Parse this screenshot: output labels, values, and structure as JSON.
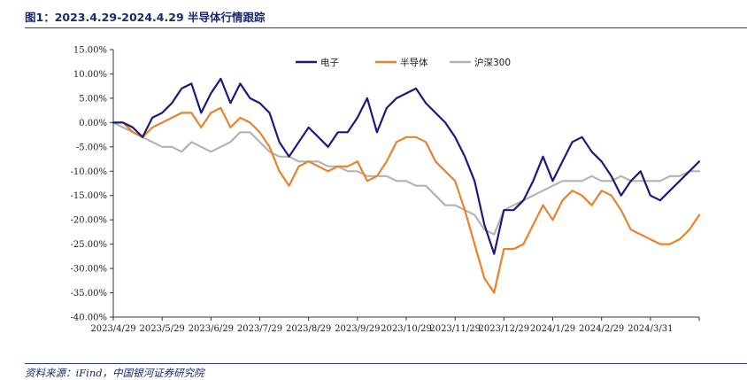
{
  "header": {
    "title": "图1：2023.4.29-2024.4.29 半导体行情跟踪"
  },
  "footer": {
    "source": "资料来源：iFind，中国银河证券研究院"
  },
  "colors": {
    "rule": "#2c3f86",
    "text": "#1a2a6c"
  },
  "chart_data": {
    "type": "line",
    "title": "图1：2023.4.29-2024.4.29 半导体行情跟踪",
    "xlabel": "",
    "ylabel": "",
    "ylim": [
      -40,
      15
    ],
    "y_ticks": [
      "15.00%",
      "10.00%",
      "5.00%",
      "0.00%",
      "-5.00%",
      "-10.00%",
      "-15.00%",
      "-20.00%",
      "-25.00%",
      "-30.00%",
      "-35.00%",
      "-40.00%"
    ],
    "y_tick_values": [
      15,
      10,
      5,
      0,
      -5,
      -10,
      -15,
      -20,
      -25,
      -30,
      -35,
      -40
    ],
    "x_ticks": [
      "2023/4/29",
      "2023/5/29",
      "2023/6/29",
      "2023/7/29",
      "2023/8/29",
      "2023/9/29",
      "2023/10/29",
      "2023/11/29",
      "2023/12/29",
      "2024/1/29",
      "2024/2/29",
      "2024/3/31"
    ],
    "x_range": [
      0,
      12
    ],
    "legend_position": "top",
    "series": [
      {
        "name": "电子",
        "color": "#1f1a7a",
        "x": [
          0,
          0.2,
          0.4,
          0.6,
          0.8,
          1.0,
          1.2,
          1.4,
          1.6,
          1.8,
          2.0,
          2.2,
          2.4,
          2.6,
          2.8,
          3.0,
          3.2,
          3.4,
          3.6,
          3.8,
          4.0,
          4.2,
          4.4,
          4.6,
          4.8,
          5.0,
          5.2,
          5.4,
          5.6,
          5.8,
          6.0,
          6.2,
          6.4,
          6.6,
          6.8,
          7.0,
          7.2,
          7.4,
          7.6,
          7.8,
          8.0,
          8.2,
          8.4,
          8.6,
          8.8,
          9.0,
          9.2,
          9.4,
          9.6,
          9.8,
          10.0,
          10.2,
          10.4,
          10.6,
          10.8,
          11.0,
          11.2,
          11.4,
          11.6,
          11.8,
          12.0
        ],
        "values": [
          0,
          0,
          -1,
          -3,
          1,
          2,
          4,
          7,
          8,
          2,
          6,
          9,
          4,
          8,
          5,
          4,
          2,
          -4,
          -7,
          -4,
          -1,
          -3,
          -5,
          -2,
          -2,
          1,
          5,
          -2,
          3,
          5,
          6,
          7,
          4,
          2,
          0,
          -3,
          -7,
          -12,
          -21,
          -27,
          -18,
          -18,
          -16,
          -12,
          -7,
          -12,
          -8,
          -4,
          -3,
          -6,
          -8,
          -11,
          -15,
          -12,
          -10,
          -15,
          -16,
          -14,
          -12,
          -10,
          -8
        ]
      },
      {
        "name": "半导体",
        "color": "#e8822c",
        "x": [
          0,
          0.2,
          0.4,
          0.6,
          0.8,
          1.0,
          1.2,
          1.4,
          1.6,
          1.8,
          2.0,
          2.2,
          2.4,
          2.6,
          2.8,
          3.0,
          3.2,
          3.4,
          3.6,
          3.8,
          4.0,
          4.2,
          4.4,
          4.6,
          4.8,
          5.0,
          5.2,
          5.4,
          5.6,
          5.8,
          6.0,
          6.2,
          6.4,
          6.6,
          6.8,
          7.0,
          7.2,
          7.4,
          7.6,
          7.8,
          8.0,
          8.2,
          8.4,
          8.6,
          8.8,
          9.0,
          9.2,
          9.4,
          9.6,
          9.8,
          10.0,
          10.2,
          10.4,
          10.6,
          10.8,
          11.0,
          11.2,
          11.4,
          11.6,
          11.8,
          12.0
        ],
        "values": [
          0,
          0,
          -2,
          -3,
          -1,
          0,
          1,
          2,
          2,
          -1,
          2,
          3,
          -1,
          1,
          0,
          -2,
          -5,
          -10,
          -13,
          -9,
          -8,
          -9,
          -10,
          -9,
          -9,
          -8,
          -12,
          -11,
          -8,
          -4,
          -3,
          -3,
          -4,
          -8,
          -10,
          -12,
          -18,
          -25,
          -32,
          -35,
          -26,
          -26,
          -25,
          -21,
          -17,
          -20,
          -16,
          -14,
          -15,
          -17,
          -14,
          -15,
          -18,
          -22,
          -23,
          -24,
          -25,
          -25,
          -24,
          -22,
          -19
        ]
      },
      {
        "name": "沪深300",
        "color": "#b3b3b3",
        "x": [
          0,
          0.2,
          0.4,
          0.6,
          0.8,
          1.0,
          1.2,
          1.4,
          1.6,
          1.8,
          2.0,
          2.2,
          2.4,
          2.6,
          2.8,
          3.0,
          3.2,
          3.4,
          3.6,
          3.8,
          4.0,
          4.2,
          4.4,
          4.6,
          4.8,
          5.0,
          5.2,
          5.4,
          5.6,
          5.8,
          6.0,
          6.2,
          6.4,
          6.6,
          6.8,
          7.0,
          7.2,
          7.4,
          7.6,
          7.8,
          8.0,
          8.2,
          8.4,
          8.6,
          8.8,
          9.0,
          9.2,
          9.4,
          9.6,
          9.8,
          10.0,
          10.2,
          10.4,
          10.6,
          10.8,
          11.0,
          11.2,
          11.4,
          11.6,
          11.8,
          12.0
        ],
        "values": [
          0,
          -1,
          -2,
          -3,
          -4,
          -5,
          -5,
          -6,
          -4,
          -5,
          -6,
          -5,
          -4,
          -2,
          -2,
          -4,
          -6,
          -7,
          -7,
          -8,
          -8,
          -8,
          -9,
          -9,
          -10,
          -10,
          -11,
          -11,
          -11,
          -12,
          -12,
          -13,
          -13,
          -15,
          -17,
          -17,
          -18,
          -19,
          -22,
          -23,
          -18,
          -17,
          -16,
          -15,
          -14,
          -13,
          -12,
          -12,
          -12,
          -11,
          -12,
          -12,
          -11,
          -12,
          -12,
          -12,
          -12,
          -11,
          -11,
          -10,
          -10
        ]
      }
    ]
  }
}
